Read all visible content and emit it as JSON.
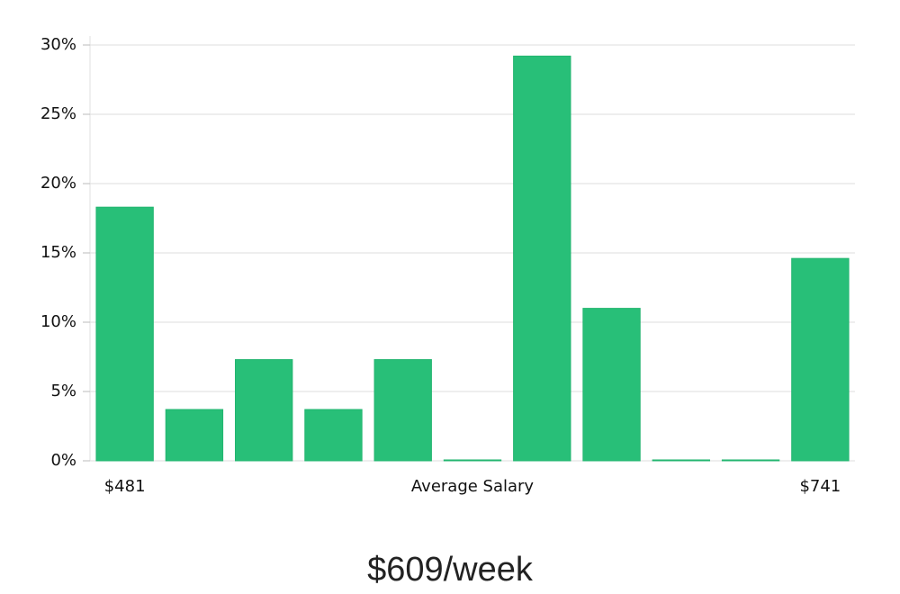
{
  "chart_data": {
    "type": "bar",
    "categories": [
      "$481",
      null,
      null,
      null,
      null,
      null,
      null,
      null,
      null,
      null,
      "$741"
    ],
    "values": [
      18.3,
      3.7,
      7.3,
      3.7,
      7.3,
      0,
      29.2,
      11,
      0,
      0,
      14.6
    ],
    "color": "#28bf78",
    "xlabel": "Average Salary",
    "caption": "$609/week",
    "ylim": [
      0,
      30
    ],
    "yticks": [
      {
        "value": 0,
        "label": "0%"
      },
      {
        "value": 5,
        "label": "5%"
      },
      {
        "value": 10,
        "label": "10%"
      },
      {
        "value": 15,
        "label": "15%"
      },
      {
        "value": 20,
        "label": "20%"
      },
      {
        "value": 25,
        "label": "25%"
      },
      {
        "value": 30,
        "label": "30%"
      }
    ],
    "grid": true
  }
}
